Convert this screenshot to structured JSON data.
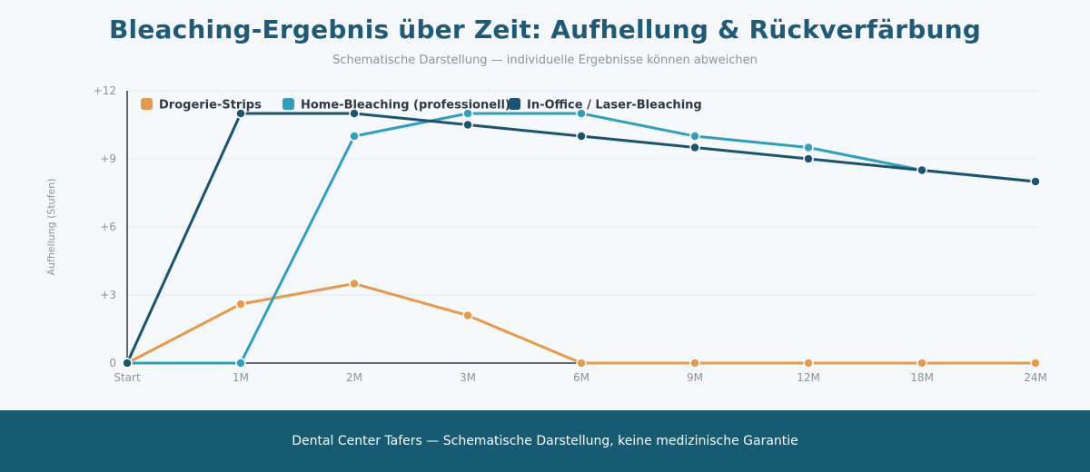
{
  "header": {
    "title": "Bleaching-Ergebnis über Zeit: Aufhellung & Rückverfärbung",
    "subtitle": "Schematische Darstellung — individuelle Ergebnisse können abweichen"
  },
  "chart_data": {
    "type": "line",
    "ylabel": "Aufhellung (Stufen)",
    "x": [
      "Start",
      "1M",
      "2M",
      "3M",
      "6M",
      "9M",
      "12M",
      "18M",
      "24M"
    ],
    "ylim": [
      0,
      12
    ],
    "yticks": [
      0,
      3,
      6,
      9,
      12
    ],
    "ytick_labels": [
      "0",
      "+3",
      "+6",
      "+9",
      "+12"
    ],
    "grid": true,
    "legend_position": "top-left",
    "series": [
      {
        "name": "Drogerie-Strips",
        "color": "#e89a4c",
        "values": [
          0,
          2.6,
          3.5,
          2.1,
          0,
          0,
          0,
          0,
          0
        ]
      },
      {
        "name": "Home-Bleaching (professionell)",
        "color": "#2f9fc0",
        "values": [
          0,
          0,
          10,
          11,
          11,
          10,
          9.5,
          8.5,
          8
        ]
      },
      {
        "name": "In-Office / Laser-Bleaching",
        "color": "#1a5570",
        "values": [
          0,
          11,
          11,
          10.5,
          10,
          9.5,
          9,
          8.5,
          8
        ]
      }
    ]
  },
  "footer": {
    "text": "Dental Center Tafers — Schematische Darstellung, keine medizinische Garantie"
  }
}
